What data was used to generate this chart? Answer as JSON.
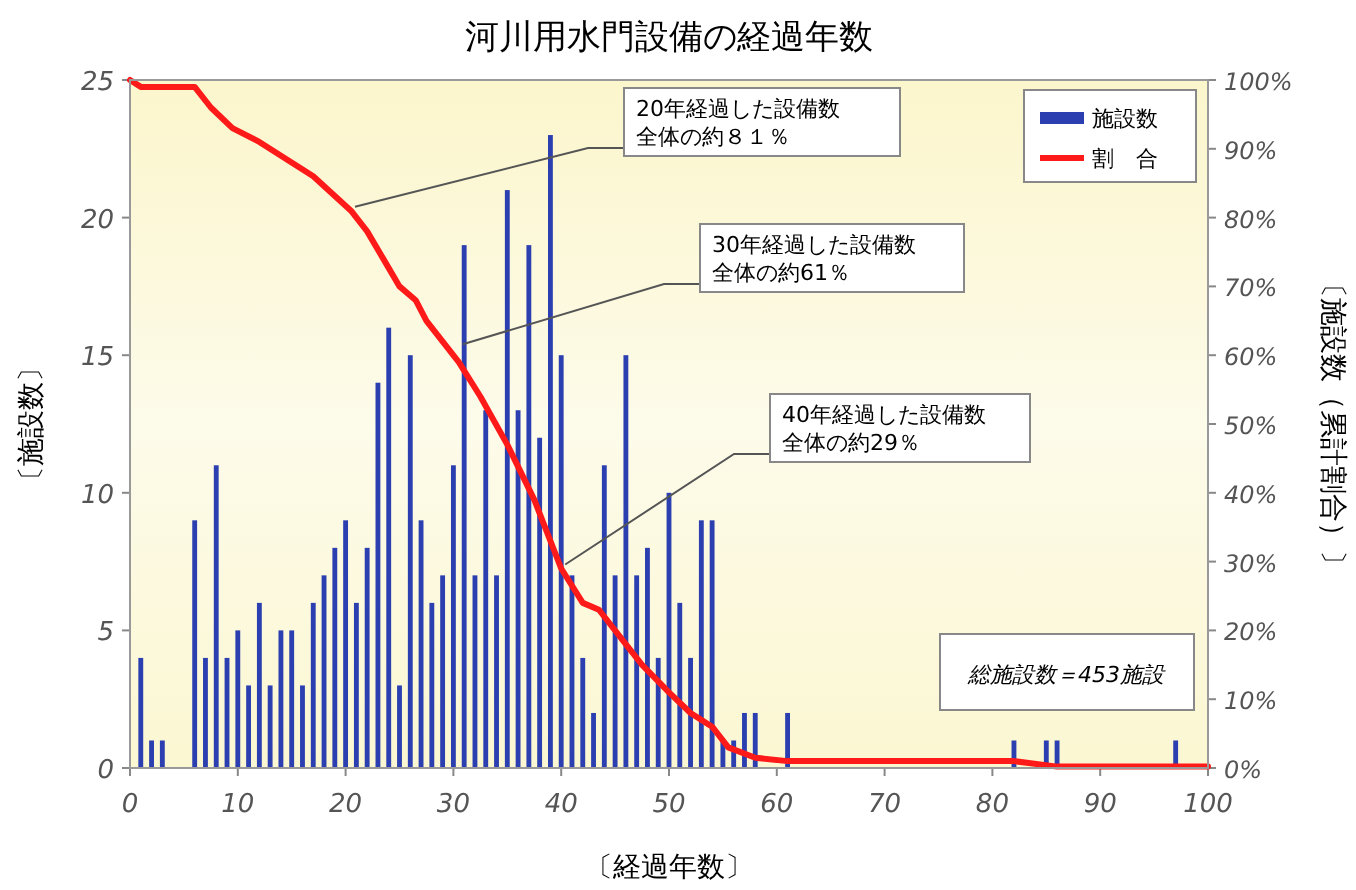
{
  "chart_data": {
    "type": "bar",
    "title": "河川用水門設備の経過年数",
    "xlabel": "〔経過年数〕",
    "ylabel": "〔施設数〕",
    "y2label": "〔施設数（累計割合）〕",
    "xlim": [
      0,
      100
    ],
    "xticks": [
      0,
      10,
      20,
      30,
      40,
      50,
      60,
      70,
      80,
      90,
      100
    ],
    "ylim": [
      0,
      25
    ],
    "yticks": [
      0,
      5,
      10,
      15,
      20,
      25
    ],
    "y2lim": [
      0,
      100
    ],
    "y2ticks": [
      {
        "value": 0,
        "label": "0%"
      },
      {
        "value": 10,
        "label": "10%"
      },
      {
        "value": 20,
        "label": "20%"
      },
      {
        "value": 30,
        "label": "30%"
      },
      {
        "value": 40,
        "label": "40%"
      },
      {
        "value": 50,
        "label": "50%"
      },
      {
        "value": 60,
        "label": "60%"
      },
      {
        "value": 70,
        "label": "70%"
      },
      {
        "value": 80,
        "label": "80%"
      },
      {
        "value": 90,
        "label": "90%"
      },
      {
        "value": 100,
        "label": "100%"
      }
    ],
    "grid": false,
    "legend": "top right",
    "series": [
      {
        "name": "施設数",
        "color": "#2b3fb0",
        "x": [
          1,
          2,
          3,
          6,
          7,
          8,
          9,
          10,
          11,
          12,
          13,
          14,
          15,
          16,
          17,
          18,
          19,
          20,
          21,
          22,
          23,
          24,
          25,
          26,
          27,
          28,
          29,
          30,
          31,
          32,
          33,
          34,
          35,
          36,
          37,
          38,
          39,
          40,
          41,
          42,
          43,
          44,
          45,
          46,
          47,
          48,
          49,
          50,
          51,
          52,
          53,
          54,
          55,
          56,
          57,
          58,
          61,
          82,
          85,
          86,
          97
        ],
        "values": [
          4,
          1,
          1,
          9,
          4,
          11,
          4,
          5,
          3,
          6,
          3,
          5,
          5,
          3,
          6,
          7,
          8,
          9,
          6,
          8,
          14,
          16,
          3,
          15,
          9,
          6,
          7,
          11,
          19,
          7,
          13,
          7,
          21,
          13,
          19,
          12,
          23,
          15,
          7,
          4,
          2,
          11,
          7,
          15,
          7,
          8,
          4,
          10,
          6,
          4,
          9,
          9,
          1,
          1,
          2,
          2,
          2,
          1,
          1,
          1,
          1
        ]
      },
      {
        "name": "割　合",
        "type": "line",
        "axis": "y2",
        "color": "#ff1a1a",
        "x": [
          0,
          1,
          2,
          6,
          7.5,
          9.5,
          12,
          17,
          20.5,
          22,
          23.5,
          25,
          26.5,
          27.5,
          30.5,
          32.5,
          35,
          37.5,
          40,
          42,
          43.5,
          45.5,
          47.5,
          50,
          52,
          54,
          55.5,
          58,
          61,
          82,
          86,
          100
        ],
        "values": [
          100,
          99,
          99,
          99,
          96,
          93,
          91,
          86,
          81,
          78,
          74,
          70,
          68,
          65,
          59,
          54,
          47,
          39,
          29,
          24,
          23,
          19,
          15,
          11,
          8,
          6,
          3,
          1.5,
          1,
          1,
          0.2,
          0.2
        ]
      }
    ],
    "annotations": [
      {
        "text": "20年経過した設備数全体の約８１％",
        "x": 20.5,
        "y": 20.25
      },
      {
        "text": "30年経過した設備数全体の約61％",
        "x": 30.5,
        "y": 15.25
      },
      {
        "text": "40年経過した設備数全体の約29％",
        "x": 40,
        "y": 7.25
      },
      "総施設数＝453施設"
    ]
  }
}
